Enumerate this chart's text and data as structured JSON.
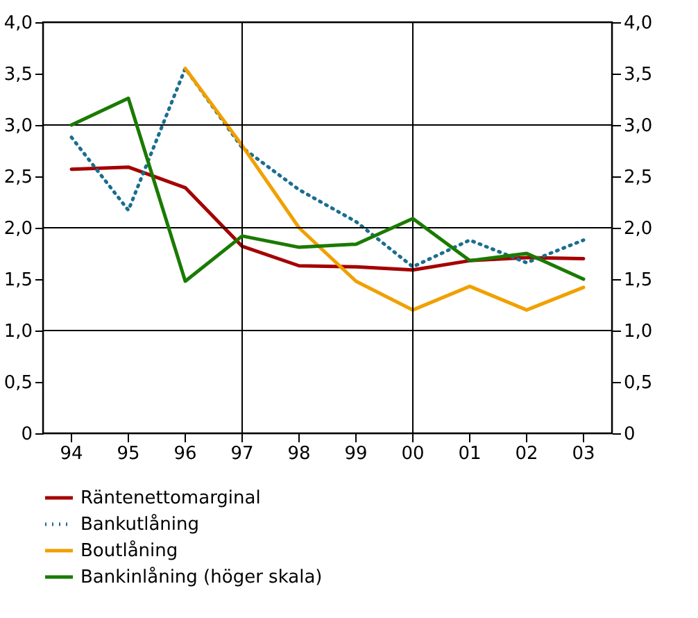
{
  "chart_data": {
    "type": "line",
    "categories": [
      "94",
      "95",
      "96",
      "97",
      "98",
      "99",
      "00",
      "01",
      "02",
      "03"
    ],
    "series": [
      {
        "name": "Räntenettomarginal",
        "color": "#a50000",
        "line_style": "solid",
        "values": [
          2.57,
          2.59,
          2.39,
          1.82,
          1.63,
          1.62,
          1.59,
          1.68,
          1.71,
          1.7
        ]
      },
      {
        "name": "Bankutlåning",
        "color": "#1a6e8e",
        "line_style": "dotted",
        "values": [
          2.88,
          2.17,
          3.55,
          2.78,
          2.37,
          2.06,
          1.62,
          1.88,
          1.66,
          1.88
        ]
      },
      {
        "name": "Boutlåning",
        "color": "#f0a000",
        "line_style": "solid",
        "values": [
          null,
          null,
          3.55,
          2.8,
          2.0,
          1.48,
          1.2,
          1.43,
          1.2,
          1.42
        ]
      },
      {
        "name": "Bankinlåning (höger skala)",
        "color": "#1a7a00",
        "line_style": "solid",
        "axis": "y2",
        "values": [
          3.0,
          3.26,
          1.48,
          1.92,
          1.81,
          1.84,
          2.09,
          1.68,
          1.75,
          1.5
        ]
      }
    ],
    "ylim": [
      0,
      4
    ],
    "yticks": [
      0,
      {
        "value": 0.5,
        "label": "0,5"
      },
      {
        "value": 1,
        "label": "1,0"
      },
      {
        "value": 1.5,
        "label": "1,5"
      },
      {
        "value": 2,
        "label": "2,0"
      },
      {
        "value": 2.5,
        "label": "2,5"
      },
      {
        "value": 3,
        "label": "3,0"
      },
      {
        "value": 3.5,
        "label": "3,5"
      },
      {
        "value": 4,
        "label": "4,0"
      }
    ],
    "y2lim": [
      0,
      4
    ],
    "y2ticks": [
      0,
      {
        "value": 0.5,
        "label": "0,5"
      },
      {
        "value": 1,
        "label": "1,0"
      },
      {
        "value": 1.5,
        "label": "1,5"
      },
      {
        "value": 2,
        "label": "2,0"
      },
      {
        "value": 2.5,
        "label": "2,5"
      },
      {
        "value": 3,
        "label": "3,0"
      },
      {
        "value": 3.5,
        "label": "3,5"
      },
      {
        "value": 4,
        "label": "4,0"
      }
    ],
    "ref_lines": [
      {
        "axis": "x",
        "value": "97",
        "color": "#000000"
      },
      {
        "axis": "x",
        "value": "00",
        "color": "#000000"
      },
      {
        "axis": "y",
        "value": 1,
        "color": "#000000"
      },
      {
        "axis": "y",
        "value": 2,
        "color": "#000000"
      },
      {
        "axis": "y",
        "value": 3,
        "color": "#000000"
      }
    ],
    "grid": false,
    "legend": "bottom"
  }
}
